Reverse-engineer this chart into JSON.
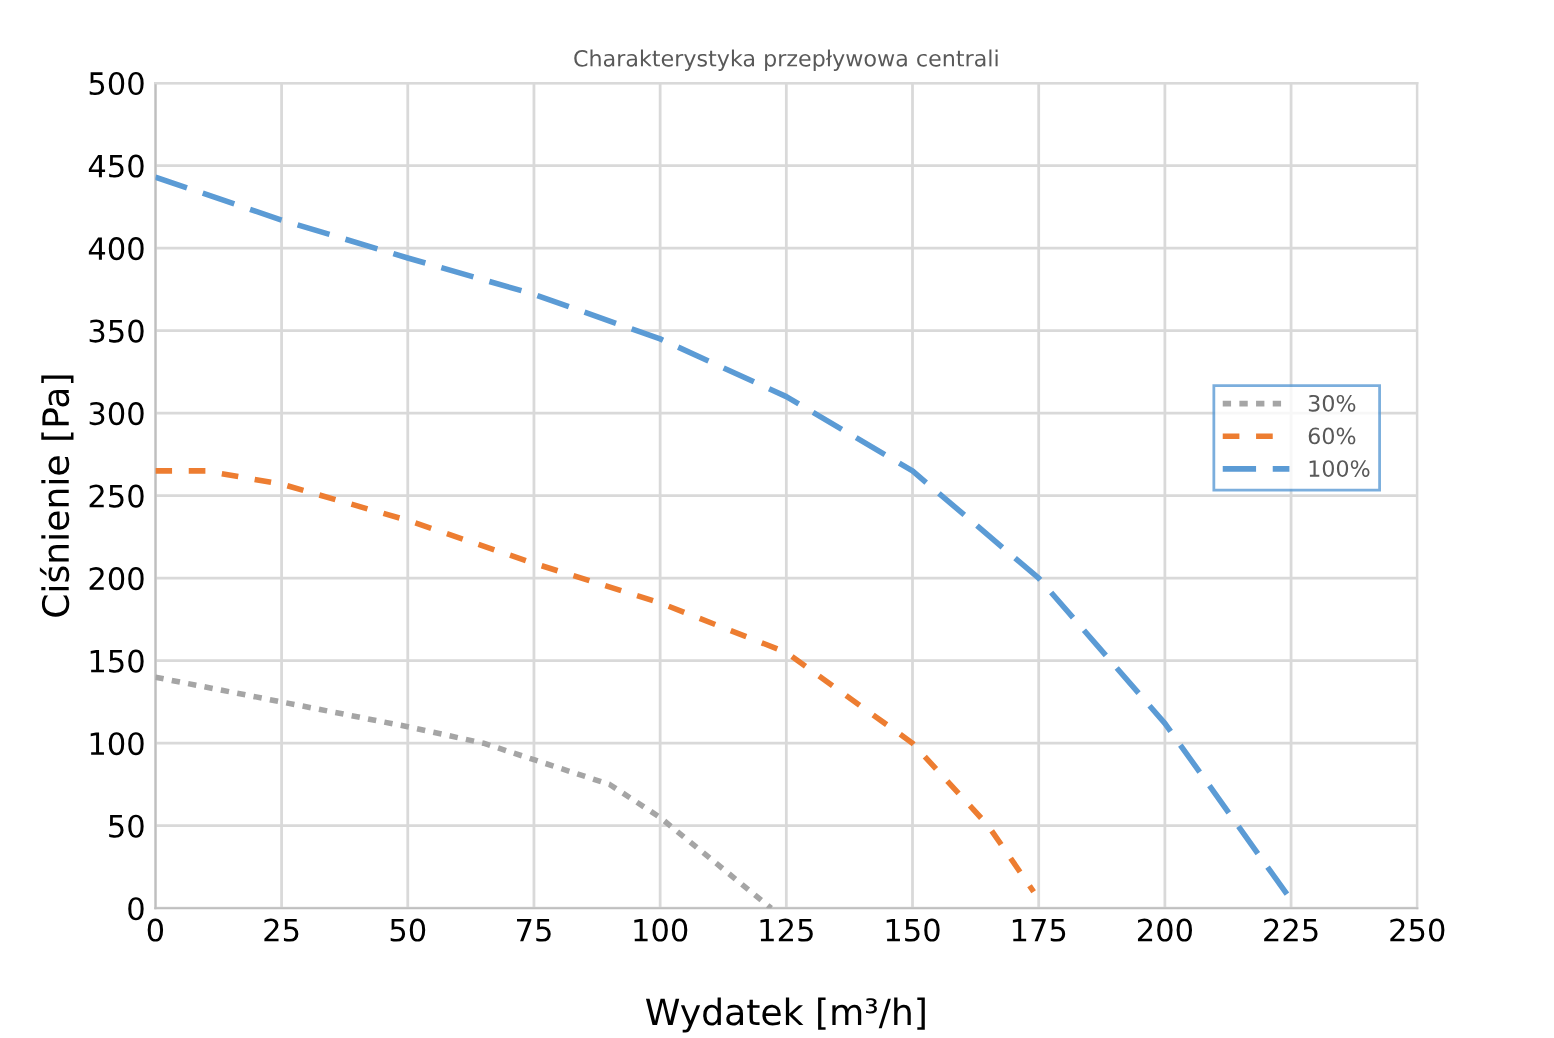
{
  "chart_data": {
    "type": "line",
    "title": "Charakterystyka przepływowa centrali",
    "xlabel": "Wydatek [m³/h]",
    "ylabel": "Ciśnienie [Pa]",
    "xlim": [
      0,
      250
    ],
    "xticks": [
      0,
      25,
      50,
      75,
      100,
      125,
      150,
      175,
      200,
      225,
      250
    ],
    "ylim": [
      0,
      500
    ],
    "yticks": [
      0,
      50,
      100,
      150,
      200,
      250,
      300,
      350,
      400,
      450,
      500
    ],
    "grid": true,
    "legend": "right",
    "marker": "none",
    "series": [
      {
        "name": "30%",
        "color": "#a5a5a5",
        "line_style": "dotted",
        "x": [
          0,
          25,
          50,
          65,
          75,
          90,
          100,
          110,
          122
        ],
        "values": [
          140,
          125,
          110,
          100,
          90,
          75,
          55,
          30,
          0
        ]
      },
      {
        "name": "60%",
        "color": "#ed7d31",
        "line_style": "dashed",
        "x": [
          0,
          10,
          25,
          50,
          75,
          100,
          125,
          150,
          165,
          174
        ],
        "values": [
          265,
          265,
          257,
          235,
          209,
          185,
          155,
          100,
          50,
          10
        ]
      },
      {
        "name": "100%",
        "color": "#5b9bd5",
        "line_style": "longdash",
        "x": [
          0,
          25,
          50,
          75,
          100,
          125,
          150,
          175,
          200,
          225
        ],
        "values": [
          443,
          417,
          394,
          372,
          345,
          310,
          265,
          200,
          112,
          5
        ]
      }
    ]
  }
}
